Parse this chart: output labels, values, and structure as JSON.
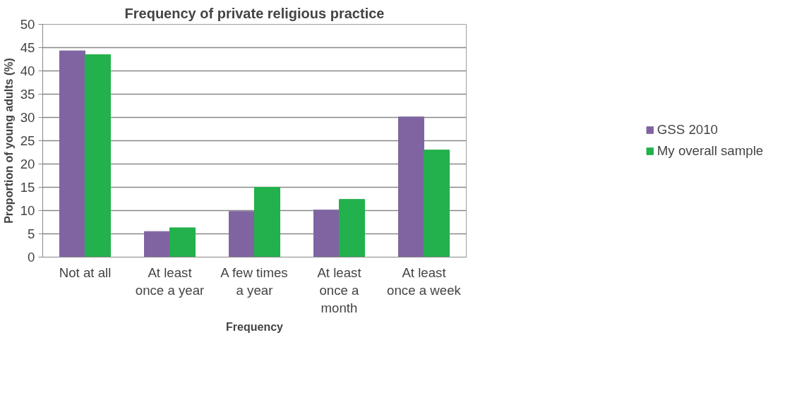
{
  "chart_data": {
    "type": "bar",
    "title": "Frequency of private religious practice",
    "xlabel": "Frequency",
    "ylabel": "Proportion of young adults (%)",
    "categories": [
      "Not at all",
      "At least once a year",
      "A few times a year",
      "At least once a month",
      "At least once a week"
    ],
    "series": [
      {
        "name": "GSS 2010",
        "color": "#8064a2",
        "values": [
          44.3,
          5.5,
          9.8,
          10.1,
          30.1
        ]
      },
      {
        "name": "My overall sample",
        "color": "#22b14c",
        "values": [
          43.5,
          6.3,
          15.0,
          12.4,
          23.0
        ]
      }
    ],
    "ylim": [
      0,
      50
    ],
    "yticks": [
      0,
      5,
      10,
      15,
      20,
      25,
      30,
      35,
      40,
      45,
      50
    ],
    "grid": "y",
    "legend": "right"
  }
}
